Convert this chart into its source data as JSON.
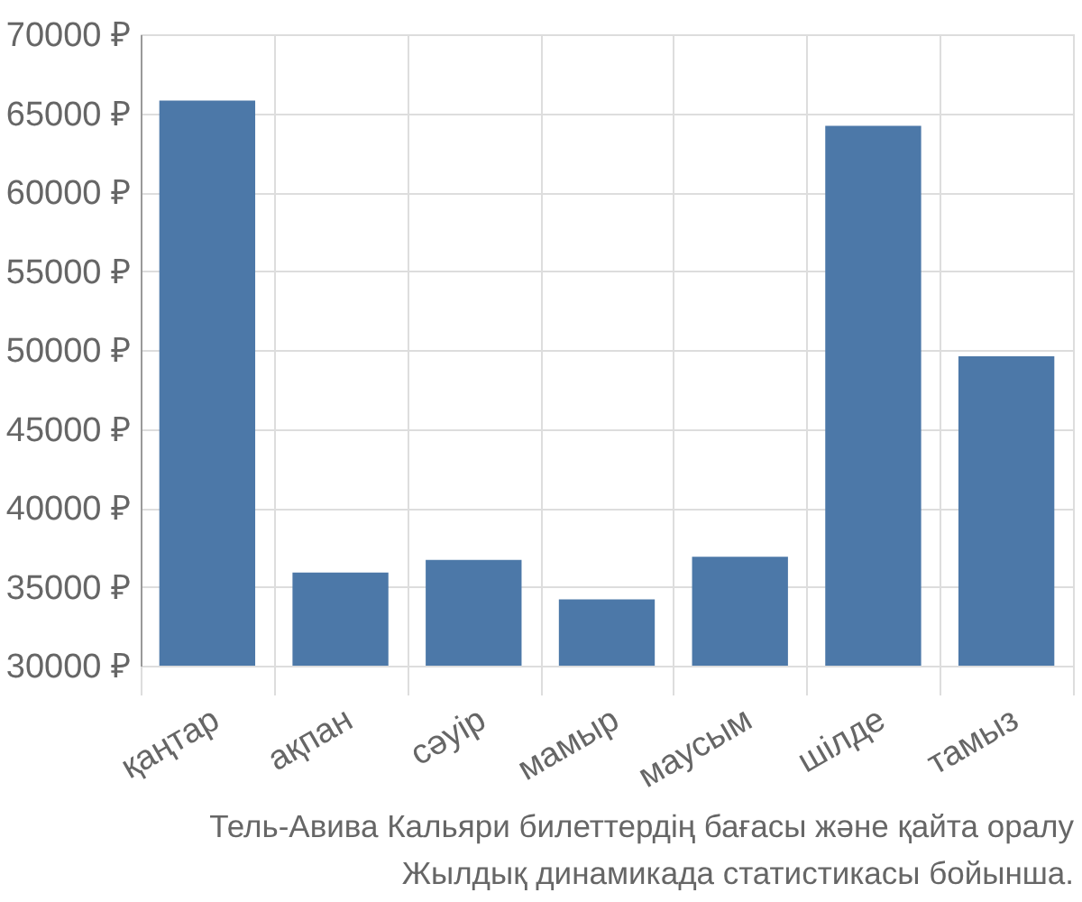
{
  "chart_data": {
    "type": "bar",
    "categories": [
      "қаңтар",
      "ақпан",
      "сәуір",
      "мамыр",
      "маусым",
      "шілде",
      "тамыз"
    ],
    "values": [
      65800,
      35900,
      36700,
      34200,
      36900,
      64200,
      49600
    ],
    "color": "#4c78a8",
    "ylim": [
      30000,
      70000
    ],
    "yticks": [
      {
        "value": 30000,
        "label": "30000 ₽"
      },
      {
        "value": 35000,
        "label": "35000 ₽"
      },
      {
        "value": 40000,
        "label": "40000 ₽"
      },
      {
        "value": 45000,
        "label": "45000 ₽"
      },
      {
        "value": 50000,
        "label": "50000 ₽"
      },
      {
        "value": 55000,
        "label": "55000 ₽"
      },
      {
        "value": 60000,
        "label": "60000 ₽"
      },
      {
        "value": 65000,
        "label": "65000 ₽"
      },
      {
        "value": 70000,
        "label": "70000 ₽"
      }
    ],
    "grid": true,
    "annotations": [
      "Тель-Авива Кальяри билеттердің бағасы және қайта оралу",
      "Жылдық динамикада статистикасы бойынша."
    ]
  }
}
